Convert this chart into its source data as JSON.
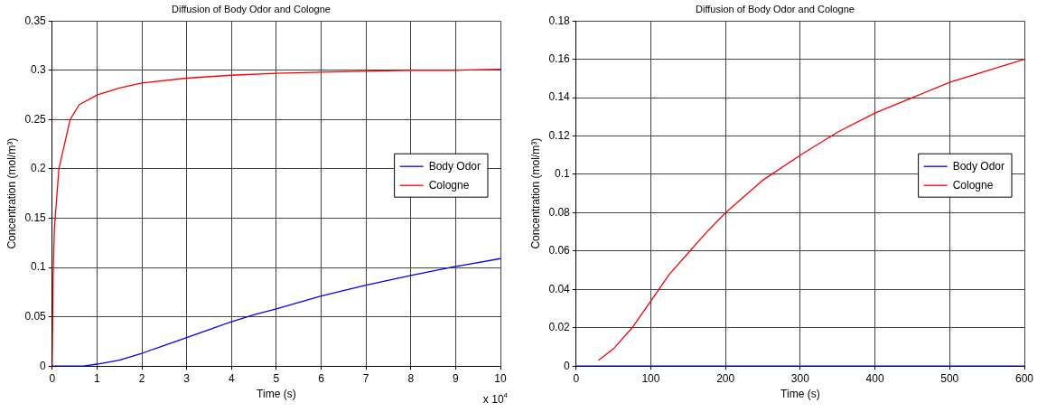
{
  "chart_data": [
    {
      "type": "line",
      "title": "Diffusion of Body Odor and Cologne",
      "xlabel": "Time (s)",
      "ylabel": "Concentration (mol/m³)",
      "annotations": [
        "x 10$^{4}$"
      ],
      "legend": "right",
      "grid": true,
      "xlim": [
        0,
        10
      ],
      "xticks": [
        0,
        1,
        2,
        3,
        4,
        5,
        6,
        7,
        8,
        9,
        10
      ],
      "ylim": [
        0,
        0.35
      ],
      "yticks": [
        0,
        0.05,
        0.1,
        0.15,
        0.2,
        0.25,
        0.3,
        0.35
      ],
      "series": [
        {
          "name": "Body Odor",
          "color": "#0000ff",
          "x": [
            0,
            0.7,
            1,
            1.5,
            2,
            2.5,
            3,
            3.5,
            4,
            4.5,
            5,
            6,
            7,
            8,
            9,
            10
          ],
          "values": [
            0,
            0,
            0.002,
            0.006,
            0.013,
            0.021,
            0.029,
            0.037,
            0.045,
            0.052,
            0.058,
            0.071,
            0.082,
            0.092,
            0.101,
            0.109
          ]
        },
        {
          "name": "Cologne",
          "color": "#ff0000",
          "x": [
            0,
            0.02,
            0.05,
            0.1,
            0.15,
            0.25,
            0.4,
            0.6,
            1,
            1.5,
            2,
            3,
            4,
            5,
            6,
            7,
            8,
            9,
            10
          ],
          "values": [
            0,
            0.09,
            0.14,
            0.17,
            0.2,
            0.22,
            0.25,
            0.265,
            0.275,
            0.282,
            0.287,
            0.292,
            0.295,
            0.297,
            0.298,
            0.299,
            0.3,
            0.3,
            0.301
          ]
        }
      ]
    },
    {
      "type": "line",
      "title": "Diffusion of Body Odor and Cologne",
      "xlabel": "Time (s)",
      "ylabel": "Concentration (mol/m³)",
      "legend": "right",
      "grid": true,
      "xlim": [
        0,
        600
      ],
      "xticks": [
        0,
        100,
        200,
        300,
        400,
        500,
        600
      ],
      "ylim": [
        0,
        0.18
      ],
      "yticks": [
        0,
        0.02,
        0.04,
        0.06,
        0.08,
        0.1,
        0.12,
        0.14,
        0.16,
        0.18
      ],
      "series": [
        {
          "name": "Body Odor",
          "color": "#0000ff",
          "x": [
            0,
            600
          ],
          "values": [
            0,
            0
          ]
        },
        {
          "name": "Cologne",
          "color": "#ff0000",
          "x": [
            30,
            50,
            75,
            100,
            125,
            150,
            175,
            200,
            250,
            300,
            350,
            400,
            450,
            500,
            550,
            600
          ],
          "values": [
            0.003,
            0.009,
            0.02,
            0.034,
            0.048,
            0.059,
            0.07,
            0.08,
            0.097,
            0.11,
            0.122,
            0.132,
            0.14,
            0.148,
            0.154,
            0.16
          ]
        }
      ]
    }
  ]
}
